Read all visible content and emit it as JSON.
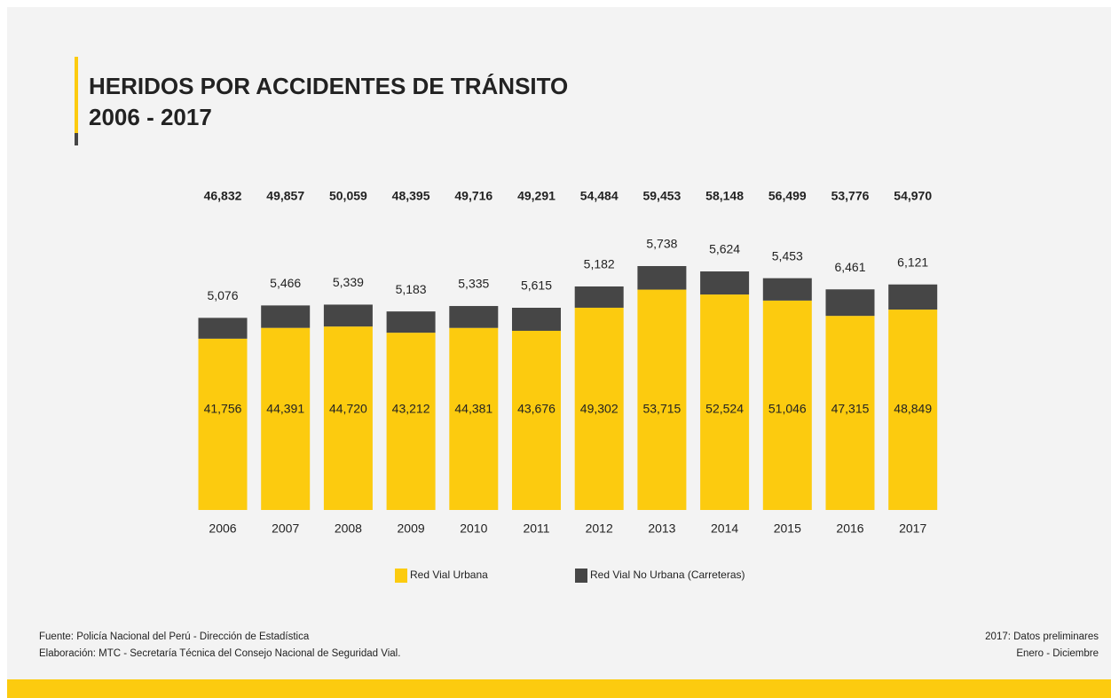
{
  "chart_data": {
    "type": "stacked_bar",
    "title": "HERIDOS POR ACCIDENTES DE TRÁNSITO",
    "subtitle": "2006 - 2017",
    "categories": [
      "2006",
      "2007",
      "2008",
      "2009",
      "2010",
      "2011",
      "2012",
      "2013",
      "2014",
      "2015",
      "2016",
      "2017"
    ],
    "series": [
      {
        "name": "Red Vial Urbana",
        "color": "#fccb0f",
        "values": [
          41756,
          44391,
          44720,
          43212,
          44381,
          43676,
          49302,
          53715,
          52524,
          51046,
          47315,
          48849
        ],
        "value_labels": [
          "41,756",
          "44,391",
          "44,720",
          "43,212",
          "44,381",
          "43,676",
          "49,302",
          "53,715",
          "52,524",
          "51,046",
          "47,315",
          "48,849"
        ]
      },
      {
        "name": "Red Vial No Urbana (Carreteras)",
        "color": "#464646",
        "values": [
          5076,
          5466,
          5339,
          5183,
          5335,
          5615,
          5182,
          5738,
          5624,
          5453,
          6461,
          6121
        ],
        "value_labels": [
          "5,076",
          "5,466",
          "5,339",
          "5,183",
          "5,335",
          "5,615",
          "5,182",
          "5,738",
          "5,624",
          "5,453",
          "6,461",
          "6,121"
        ]
      }
    ],
    "totals": [
      46832,
      49857,
      50059,
      48395,
      49716,
      49291,
      54484,
      59453,
      58148,
      56499,
      53776,
      54970
    ],
    "total_labels": [
      "46,832",
      "49,857",
      "50,059",
      "48,395",
      "49,716",
      "49,291",
      "54,484",
      "59,453",
      "58,148",
      "56,499",
      "53,776",
      "54,970"
    ],
    "source": [
      "Fuente: Policía Nacional del Perú - Dirección de Estadística",
      "Elaboración: MTC - Secretaría Técnica del Consejo Nacional de Seguridad Vial."
    ],
    "notes": [
      "2017: Datos preliminares",
      "Enero - Diciembre"
    ]
  }
}
